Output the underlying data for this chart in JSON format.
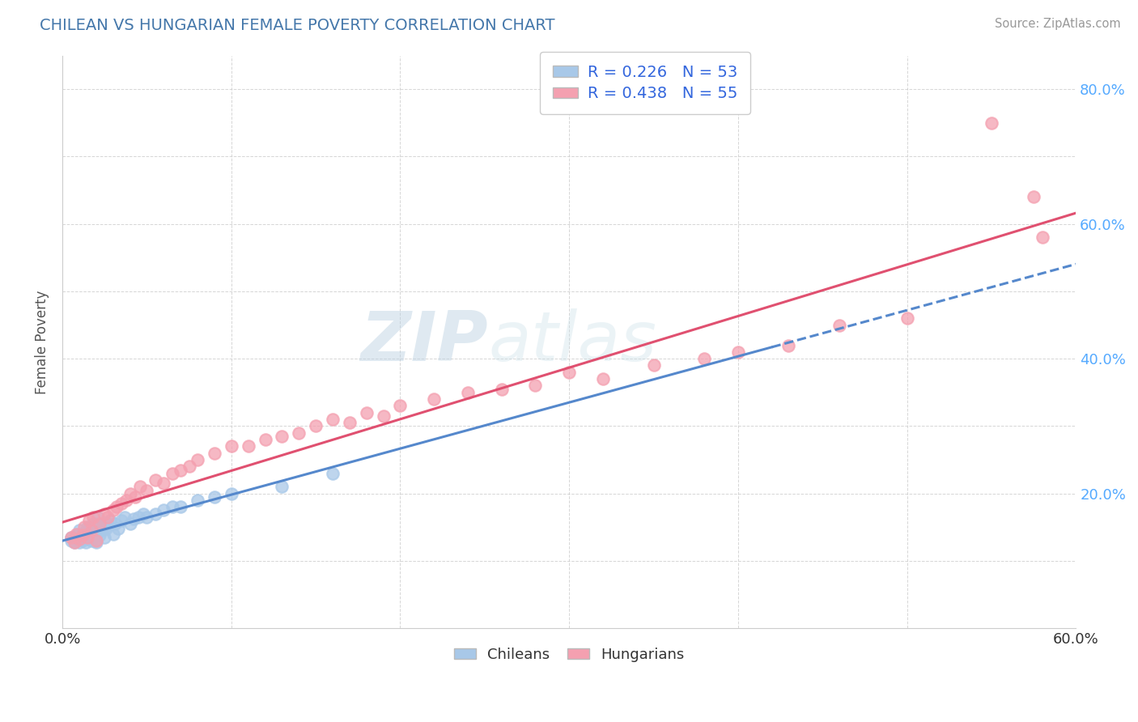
{
  "title": "CHILEAN VS HUNGARIAN FEMALE POVERTY CORRELATION CHART",
  "source": "Source: ZipAtlas.com",
  "ylabel": "Female Poverty",
  "xlim": [
    0.0,
    0.6
  ],
  "ylim": [
    0.0,
    0.85
  ],
  "xtick_positions": [
    0.0,
    0.1,
    0.2,
    0.3,
    0.4,
    0.5,
    0.6
  ],
  "xtick_labels": [
    "0.0%",
    "",
    "",
    "",
    "",
    "",
    "60.0%"
  ],
  "ytick_positions": [
    0.0,
    0.1,
    0.2,
    0.3,
    0.4,
    0.5,
    0.6,
    0.7,
    0.8
  ],
  "ytick_labels": [
    "",
    "",
    "20.0%",
    "",
    "40.0%",
    "",
    "60.0%",
    "",
    "80.0%"
  ],
  "chilean_color": "#a8c8e8",
  "hungarian_color": "#f4a0b0",
  "chilean_line_color": "#5588cc",
  "hungarian_line_color": "#e05070",
  "R_chilean": 0.226,
  "N_chilean": 53,
  "R_hungarian": 0.438,
  "N_hungarian": 55,
  "watermark": "ZIPatlas",
  "title_color": "#4477aa",
  "source_color": "#999999",
  "legend_text_color": "#3366dd",
  "tick_color_right": "#55aaff",
  "tick_color_bottom": "#333333",
  "chilean_x": [
    0.005,
    0.005,
    0.007,
    0.008,
    0.009,
    0.01,
    0.01,
    0.01,
    0.012,
    0.012,
    0.013,
    0.013,
    0.014,
    0.015,
    0.015,
    0.016,
    0.016,
    0.017,
    0.017,
    0.018,
    0.018,
    0.019,
    0.019,
    0.02,
    0.02,
    0.02,
    0.021,
    0.022,
    0.023,
    0.024,
    0.025,
    0.026,
    0.027,
    0.028,
    0.03,
    0.031,
    0.033,
    0.035,
    0.037,
    0.04,
    0.042,
    0.045,
    0.048,
    0.05,
    0.055,
    0.06,
    0.065,
    0.07,
    0.08,
    0.09,
    0.1,
    0.13,
    0.16
  ],
  "chilean_y": [
    0.13,
    0.135,
    0.128,
    0.132,
    0.14,
    0.128,
    0.135,
    0.145,
    0.13,
    0.138,
    0.133,
    0.142,
    0.128,
    0.135,
    0.15,
    0.132,
    0.148,
    0.13,
    0.145,
    0.135,
    0.155,
    0.13,
    0.14,
    0.128,
    0.14,
    0.155,
    0.165,
    0.138,
    0.145,
    0.152,
    0.135,
    0.148,
    0.155,
    0.16,
    0.14,
    0.155,
    0.148,
    0.16,
    0.165,
    0.155,
    0.162,
    0.165,
    0.17,
    0.165,
    0.17,
    0.175,
    0.18,
    0.18,
    0.19,
    0.195,
    0.2,
    0.21,
    0.23
  ],
  "hungarian_x": [
    0.005,
    0.007,
    0.008,
    0.01,
    0.012,
    0.013,
    0.015,
    0.016,
    0.017,
    0.018,
    0.02,
    0.022,
    0.025,
    0.027,
    0.03,
    0.032,
    0.035,
    0.038,
    0.04,
    0.043,
    0.046,
    0.05,
    0.055,
    0.06,
    0.065,
    0.07,
    0.075,
    0.08,
    0.09,
    0.1,
    0.11,
    0.12,
    0.13,
    0.14,
    0.15,
    0.16,
    0.17,
    0.18,
    0.19,
    0.2,
    0.22,
    0.24,
    0.26,
    0.28,
    0.3,
    0.32,
    0.35,
    0.38,
    0.4,
    0.43,
    0.46,
    0.5,
    0.55,
    0.575,
    0.58
  ],
  "hungarian_y": [
    0.135,
    0.128,
    0.14,
    0.132,
    0.138,
    0.15,
    0.135,
    0.16,
    0.145,
    0.165,
    0.13,
    0.155,
    0.17,
    0.165,
    0.175,
    0.18,
    0.185,
    0.19,
    0.2,
    0.195,
    0.21,
    0.205,
    0.22,
    0.215,
    0.23,
    0.235,
    0.24,
    0.25,
    0.26,
    0.27,
    0.27,
    0.28,
    0.285,
    0.29,
    0.3,
    0.31,
    0.305,
    0.32,
    0.315,
    0.33,
    0.34,
    0.35,
    0.355,
    0.36,
    0.38,
    0.37,
    0.39,
    0.4,
    0.41,
    0.42,
    0.45,
    0.46,
    0.75,
    0.64,
    0.58
  ]
}
